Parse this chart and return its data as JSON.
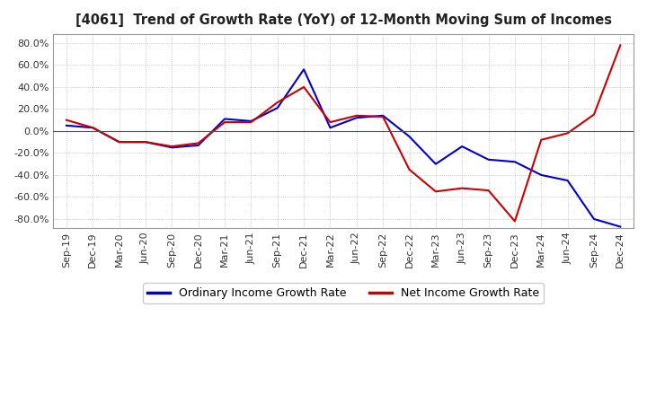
{
  "title": "[4061]  Trend of Growth Rate (YoY) of 12-Month Moving Sum of Incomes",
  "xlabels": [
    "Sep-19",
    "Dec-19",
    "Mar-20",
    "Jun-20",
    "Sep-20",
    "Dec-20",
    "Mar-21",
    "Jun-21",
    "Sep-21",
    "Dec-21",
    "Mar-22",
    "Jun-22",
    "Sep-22",
    "Dec-22",
    "Mar-23",
    "Jun-23",
    "Sep-23",
    "Dec-23",
    "Mar-24",
    "Jun-24",
    "Sep-24",
    "Dec-24"
  ],
  "ordinary_income": [
    5.0,
    3.0,
    -10.0,
    -10.0,
    -15.0,
    -13.0,
    11.0,
    9.0,
    21.0,
    56.0,
    3.0,
    12.0,
    14.0,
    -5.0,
    -30.0,
    -14.0,
    -26.0,
    -28.0,
    -40.0,
    -45.0,
    -80.0,
    -87.0
  ],
  "net_income": [
    10.0,
    3.0,
    -10.0,
    -10.0,
    -14.0,
    -11.0,
    8.0,
    8.0,
    26.0,
    40.0,
    8.0,
    14.0,
    13.0,
    -35.0,
    -55.0,
    -52.0,
    -54.0,
    -82.0,
    -8.0,
    -2.0,
    15.0,
    78.0
  ],
  "ordinary_income_color": "#0000cc",
  "net_income_color": "#cc0000",
  "ylim_min": -88,
  "ylim_max": 88,
  "yticks": [
    -80.0,
    -60.0,
    -40.0,
    -20.0,
    0.0,
    20.0,
    40.0,
    60.0,
    80.0
  ],
  "background_color": "#ffffff",
  "grid_color": "#aaaaaa",
  "legend_ordinary": "Ordinary Income Growth Rate",
  "legend_net": "Net Income Growth Rate",
  "linewidth": 1.5
}
